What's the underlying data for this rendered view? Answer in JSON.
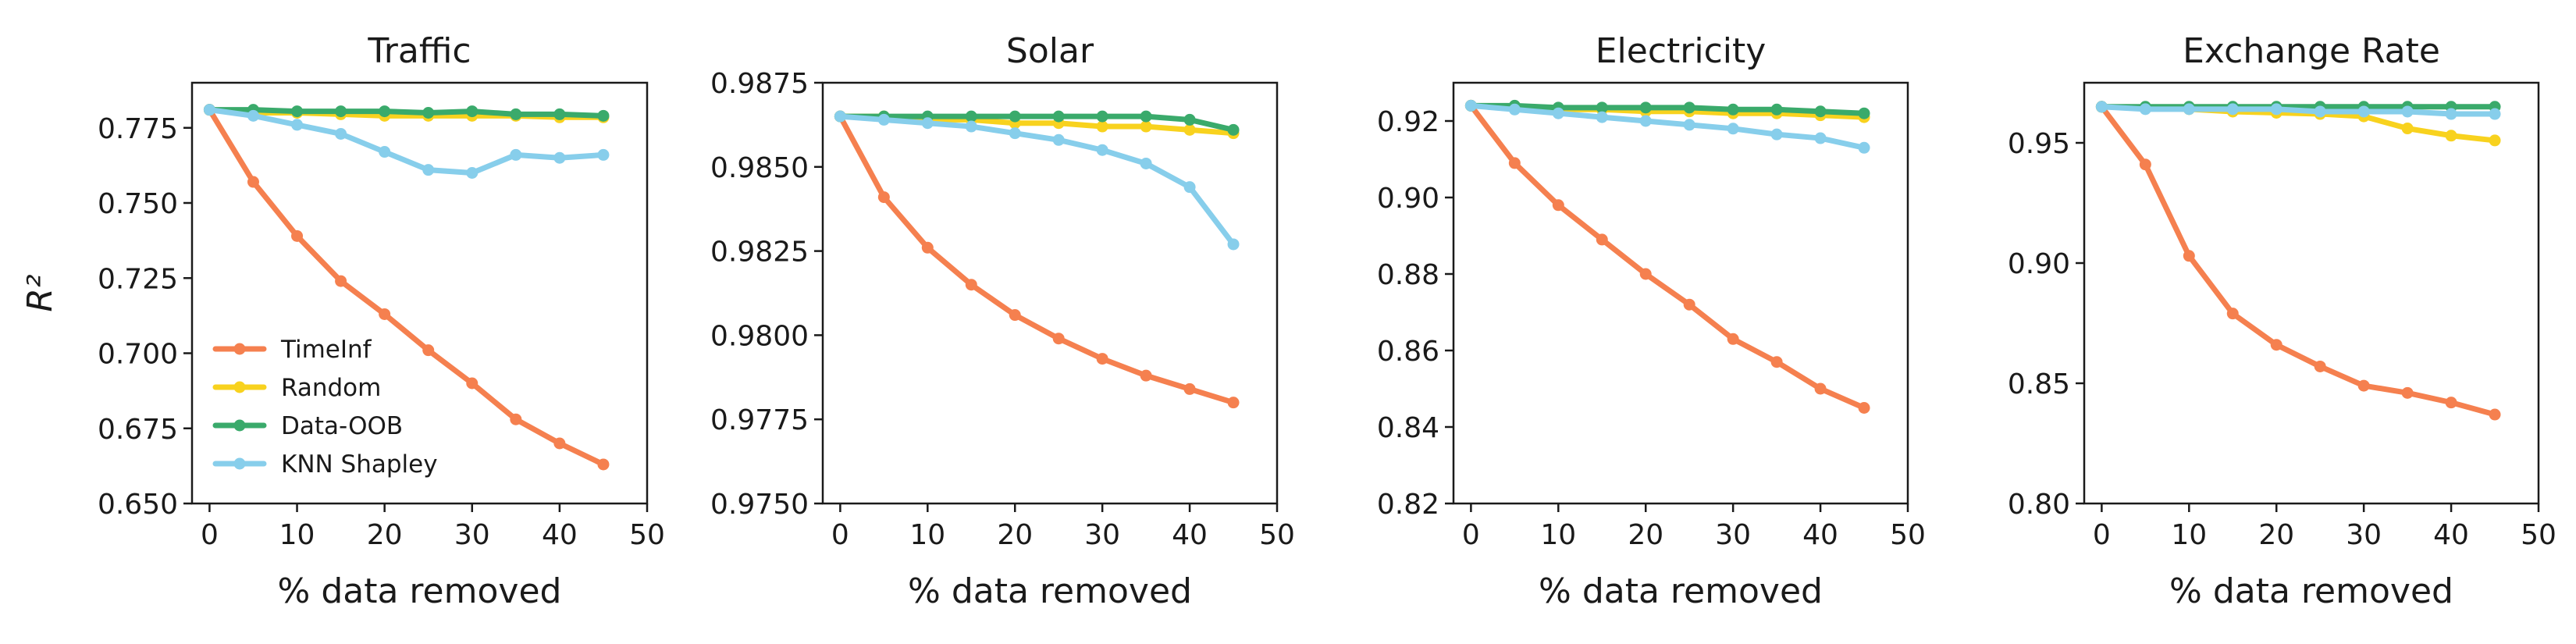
{
  "chart_data": [
    {
      "type": "line",
      "title": "Traffic",
      "xlabel": "% data removed",
      "ylabel": "R²",
      "xlim": [
        -2,
        50
      ],
      "ylim": [
        0.65,
        0.79
      ],
      "xticks": [
        0,
        10,
        20,
        30,
        40,
        50
      ],
      "yticks": [
        "0.650",
        "0.675",
        "0.700",
        "0.725",
        "0.750",
        "0.775"
      ],
      "grid": false,
      "legend": "bottom-left",
      "x": [
        0,
        5,
        10,
        15,
        20,
        25,
        30,
        35,
        40,
        45
      ],
      "series": [
        {
          "name": "TimeInf",
          "color": "#f5804f",
          "values": [
            0.781,
            0.757,
            0.739,
            0.724,
            0.713,
            0.701,
            0.69,
            0.678,
            0.67,
            0.663
          ]
        },
        {
          "name": "Random",
          "color": "#f8d21e",
          "values": [
            0.781,
            0.78,
            0.78,
            0.7795,
            0.779,
            0.779,
            0.779,
            0.779,
            0.7785,
            0.7785
          ]
        },
        {
          "name": "Data-OOB",
          "color": "#3aaa6b",
          "values": [
            0.781,
            0.781,
            0.7805,
            0.7805,
            0.7805,
            0.78,
            0.7805,
            0.7795,
            0.7795,
            0.779
          ]
        },
        {
          "name": "KNN Shapley",
          "color": "#87ceeb",
          "values": [
            0.781,
            0.779,
            0.776,
            0.773,
            0.767,
            0.761,
            0.76,
            0.766,
            0.765,
            0.766
          ]
        }
      ]
    },
    {
      "type": "line",
      "title": "Solar",
      "xlabel": "% data removed",
      "ylabel": "",
      "xlim": [
        -2,
        50
      ],
      "ylim": [
        0.975,
        0.9875
      ],
      "xticks": [
        0,
        10,
        20,
        30,
        40,
        50
      ],
      "yticks": [
        "0.9750",
        "0.9775",
        "0.9800",
        "0.9825",
        "0.9850",
        "0.9875"
      ],
      "grid": false,
      "x": [
        0,
        5,
        10,
        15,
        20,
        25,
        30,
        35,
        40,
        45
      ],
      "series": [
        {
          "name": "TimeInf",
          "color": "#f5804f",
          "values": [
            0.9865,
            0.9841,
            0.9826,
            0.9815,
            0.9806,
            0.9799,
            0.9793,
            0.9788,
            0.9784,
            0.978
          ]
        },
        {
          "name": "Random",
          "color": "#f8d21e",
          "values": [
            0.9865,
            0.9865,
            0.9864,
            0.9864,
            0.9863,
            0.9863,
            0.9862,
            0.9862,
            0.9861,
            0.986
          ]
        },
        {
          "name": "Data-OOB",
          "color": "#3aaa6b",
          "values": [
            0.9865,
            0.9865,
            0.9865,
            0.9865,
            0.9865,
            0.9865,
            0.9865,
            0.9865,
            0.9864,
            0.9861
          ]
        },
        {
          "name": "KNN Shapley",
          "color": "#87ceeb",
          "values": [
            0.9865,
            0.9864,
            0.9863,
            0.9862,
            0.986,
            0.9858,
            0.9855,
            0.9851,
            0.9844,
            0.9827
          ]
        }
      ]
    },
    {
      "type": "line",
      "title": "Electricity",
      "xlabel": "% data removed",
      "ylabel": "",
      "xlim": [
        -2,
        50
      ],
      "ylim": [
        0.82,
        0.93
      ],
      "xticks": [
        0,
        10,
        20,
        30,
        40,
        50
      ],
      "yticks": [
        "0.82",
        "0.84",
        "0.86",
        "0.88",
        "0.90",
        "0.92"
      ],
      "grid": false,
      "x": [
        0,
        5,
        10,
        15,
        20,
        25,
        30,
        35,
        40,
        45
      ],
      "series": [
        {
          "name": "TimeInf",
          "color": "#f5804f",
          "values": [
            0.924,
            0.909,
            0.898,
            0.889,
            0.88,
            0.872,
            0.863,
            0.857,
            0.85,
            0.845
          ]
        },
        {
          "name": "Random",
          "color": "#f8d21e",
          "values": [
            0.924,
            0.9235,
            0.923,
            0.923,
            0.9225,
            0.9225,
            0.922,
            0.922,
            0.9215,
            0.921
          ]
        },
        {
          "name": "Data-OOB",
          "color": "#3aaa6b",
          "values": [
            0.924,
            0.924,
            0.9235,
            0.9235,
            0.9235,
            0.9235,
            0.923,
            0.923,
            0.9225,
            0.922
          ]
        },
        {
          "name": "KNN Shapley",
          "color": "#87ceeb",
          "values": [
            0.924,
            0.923,
            0.922,
            0.921,
            0.92,
            0.919,
            0.918,
            0.9165,
            0.9155,
            0.913
          ]
        }
      ]
    },
    {
      "type": "line",
      "title": "Exchange Rate",
      "xlabel": "% data removed",
      "ylabel": "",
      "xlim": [
        -2,
        50
      ],
      "ylim": [
        0.8,
        0.975
      ],
      "xticks": [
        0,
        10,
        20,
        30,
        40,
        50
      ],
      "yticks": [
        "0.80",
        "0.85",
        "0.90",
        "0.95"
      ],
      "grid": false,
      "x": [
        0,
        5,
        10,
        15,
        20,
        25,
        30,
        35,
        40,
        45
      ],
      "series": [
        {
          "name": "TimeInf",
          "color": "#f5804f",
          "values": [
            0.965,
            0.941,
            0.903,
            0.879,
            0.866,
            0.857,
            0.849,
            0.846,
            0.842,
            0.837
          ]
        },
        {
          "name": "Random",
          "color": "#f8d21e",
          "values": [
            0.965,
            0.9645,
            0.964,
            0.963,
            0.9625,
            0.962,
            0.961,
            0.956,
            0.953,
            0.951
          ]
        },
        {
          "name": "Data-OOB",
          "color": "#3aaa6b",
          "values": [
            0.965,
            0.965,
            0.965,
            0.965,
            0.965,
            0.965,
            0.965,
            0.965,
            0.965,
            0.965
          ]
        },
        {
          "name": "KNN Shapley",
          "color": "#87ceeb",
          "values": [
            0.965,
            0.964,
            0.964,
            0.964,
            0.964,
            0.963,
            0.963,
            0.963,
            0.962,
            0.962
          ]
        }
      ]
    }
  ]
}
